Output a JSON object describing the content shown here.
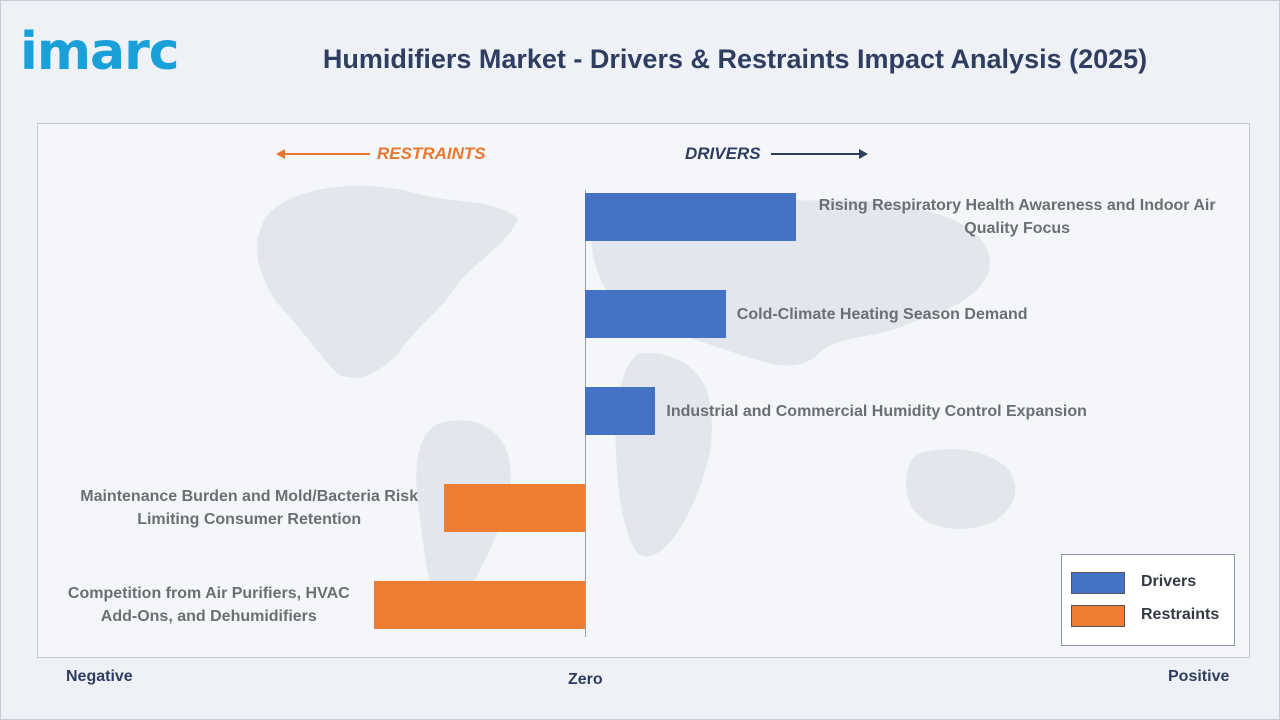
{
  "brand": {
    "logo_text": "imarc",
    "logo_color": "#1aa0d8"
  },
  "title": "Humidifiers Market - Drivers & Restraints Impact Analysis (2025)",
  "direction_labels": {
    "restraints": "RESTRAINTS",
    "drivers": "DRIVERS"
  },
  "scale_labels": {
    "negative": "Negative",
    "zero": "Zero",
    "positive": "Positive"
  },
  "legend": [
    {
      "label": "Drivers",
      "color": "#4472c4"
    },
    {
      "label": "Restraints",
      "color": "#ed7d31"
    }
  ],
  "colors": {
    "driver": "#4472c4",
    "restraint": "#ed7d31",
    "title": "#2f3e60",
    "restraints_label": "#e8782f"
  },
  "chart_data": {
    "type": "bar",
    "orientation": "horizontal",
    "title": "Humidifiers Market - Drivers & Restraints Impact Analysis (2025)",
    "xlabel": "",
    "ylabel": "",
    "x_tick_labels": [
      "Negative",
      "Zero",
      "Positive"
    ],
    "xlim": [
      -1,
      1
    ],
    "grid": false,
    "legend_position": "bottom-right",
    "series": [
      {
        "name": "Drivers",
        "categories": [
          "Rising Respiratory Health Awareness and Indoor Air Quality Focus",
          "Cold-Climate Heating Season Demand",
          "Industrial and Commercial Humidity Control Expansion"
        ],
        "values": [
          0.33,
          0.22,
          0.11
        ]
      },
      {
        "name": "Restraints",
        "categories": [
          "Maintenance Burden and Mold/Bacteria Risk Limiting Consumer Retention",
          "Competition from Air Purifiers, HVAC Add-Ons, and Dehumidifiers"
        ],
        "values": [
          -0.22,
          -0.33
        ]
      }
    ],
    "bars": [
      {
        "label": "Rising Respiratory Health Awareness and Indoor Air Quality Focus",
        "type": "driver",
        "value": 0.33
      },
      {
        "label": "Cold-Climate Heating Season Demand",
        "type": "driver",
        "value": 0.22
      },
      {
        "label": "Industrial and Commercial Humidity Control Expansion",
        "type": "driver",
        "value": 0.11
      },
      {
        "label": "Maintenance Burden and Mold/Bacteria Risk Limiting Consumer Retention",
        "type": "restraint",
        "value": -0.22
      },
      {
        "label": "Competition from Air Purifiers, HVAC Add-Ons, and Dehumidifiers",
        "type": "restraint",
        "value": -0.33
      }
    ]
  }
}
